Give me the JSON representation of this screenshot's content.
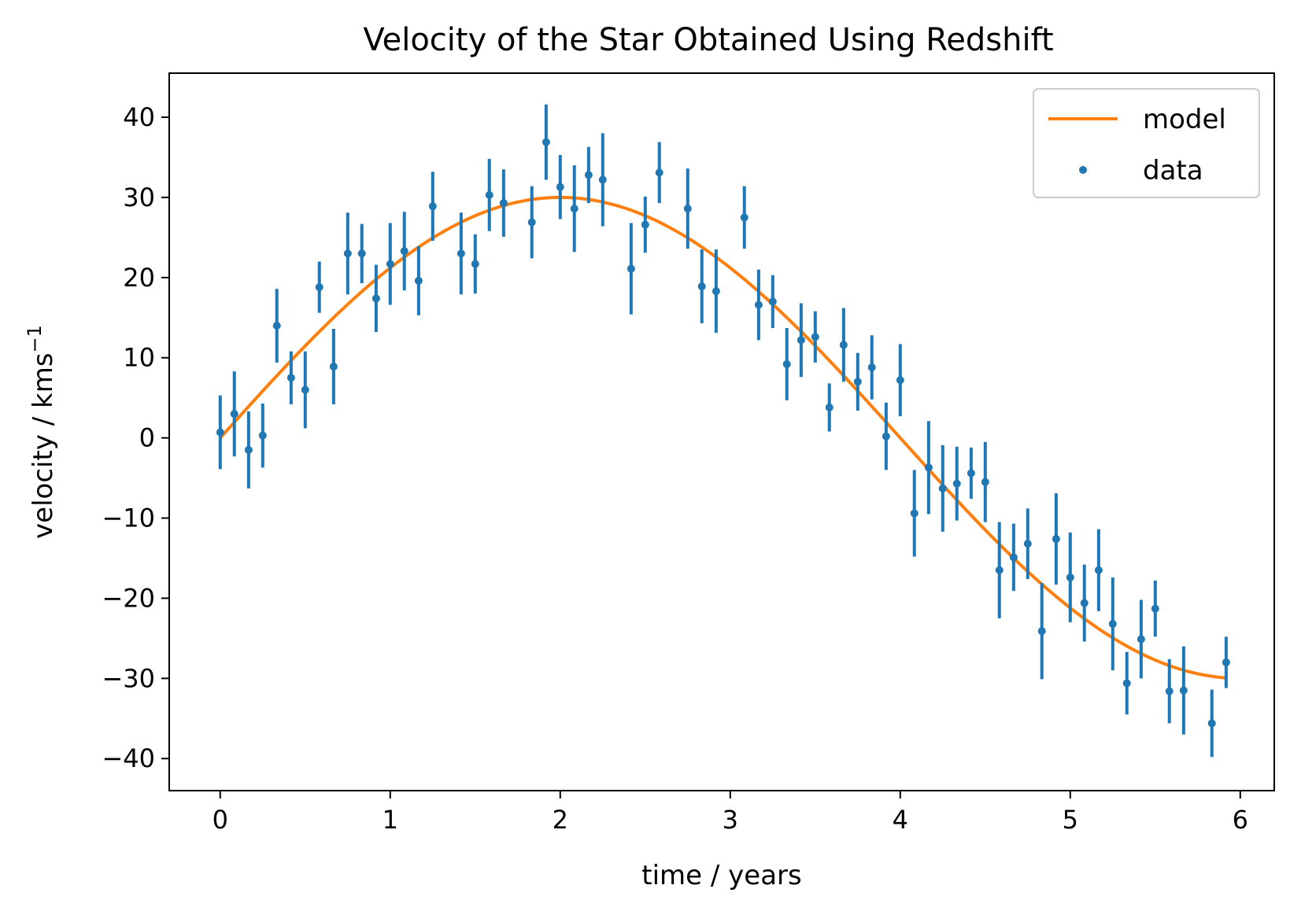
{
  "chart_data": {
    "type": "scatter",
    "title": "Velocity of the Star Obtained Using Redshift",
    "xlabel": "time / years",
    "ylabel": "velocity / kms",
    "ylabel_sup": "−1",
    "xlim": [
      -0.3,
      6.2
    ],
    "ylim": [
      -44,
      45.5
    ],
    "xticks": [
      0,
      1,
      2,
      3,
      4,
      5,
      6
    ],
    "xtick_labels": [
      "0",
      "1",
      "2",
      "3",
      "4",
      "5",
      "6"
    ],
    "yticks": [
      -40,
      -30,
      -20,
      -10,
      0,
      10,
      20,
      30,
      40
    ],
    "ytick_labels": [
      "−40",
      "−30",
      "−20",
      "−10",
      "0",
      "10",
      "20",
      "30",
      "40"
    ],
    "grid": false,
    "legend": {
      "placement": "top-right",
      "entries": [
        "model",
        "data"
      ]
    },
    "colors": {
      "model": "#ff7f0e",
      "data": "#1f77b4"
    },
    "series": [
      {
        "name": "model",
        "kind": "line",
        "function": "30*sin(2*pi*t/8)",
        "x_range": [
          0,
          5.92
        ]
      },
      {
        "name": "data",
        "kind": "errorbar",
        "x": [
          0,
          0.083,
          0.167,
          0.25,
          0.333,
          0.417,
          0.5,
          0.583,
          0.667,
          0.75,
          0.833,
          0.917,
          1.0,
          1.083,
          1.167,
          1.25,
          1.417,
          1.5,
          1.583,
          1.667,
          1.833,
          1.917,
          2.0,
          2.083,
          2.167,
          2.25,
          2.417,
          2.5,
          2.583,
          2.75,
          2.833,
          2.917,
          3.083,
          3.167,
          3.25,
          3.333,
          3.417,
          3.5,
          3.583,
          3.667,
          3.75,
          3.833,
          3.917,
          4.0,
          4.083,
          4.167,
          4.25,
          4.333,
          4.417,
          4.5,
          4.583,
          4.667,
          4.75,
          4.833,
          4.917,
          5.0,
          5.083,
          5.167,
          5.25,
          5.333,
          5.417,
          5.5,
          5.583,
          5.667,
          5.833,
          5.917
        ],
        "y": [
          0.7,
          3.0,
          -1.5,
          0.3,
          14.0,
          7.5,
          6.0,
          18.8,
          8.9,
          23.0,
          23.0,
          17.4,
          21.7,
          23.3,
          19.6,
          28.9,
          23.0,
          21.7,
          30.3,
          29.3,
          26.9,
          36.9,
          31.3,
          28.6,
          32.8,
          32.2,
          21.1,
          26.6,
          33.1,
          28.6,
          18.9,
          18.3,
          27.5,
          16.6,
          17.0,
          9.2,
          12.2,
          12.6,
          3.8,
          11.6,
          7.0,
          8.8,
          0.2,
          7.2,
          -9.4,
          -3.7,
          -6.3,
          -5.7,
          -4.4,
          -5.5,
          -16.5,
          -14.9,
          -13.2,
          -24.1,
          -12.6,
          -17.4,
          -20.6,
          -16.5,
          -23.2,
          -30.6,
          -25.1,
          -21.3,
          -31.6,
          -31.5,
          -35.6,
          -28.0
        ],
        "err": [
          4.6,
          5.3,
          4.8,
          4.0,
          4.6,
          3.3,
          4.8,
          3.2,
          4.7,
          5.1,
          3.7,
          4.2,
          5.1,
          4.9,
          4.3,
          4.3,
          5.1,
          3.7,
          4.5,
          4.2,
          4.5,
          4.7,
          4.0,
          5.4,
          3.5,
          5.8,
          5.7,
          3.5,
          3.8,
          5.0,
          4.6,
          5.2,
          3.9,
          4.4,
          3.3,
          4.5,
          4.6,
          3.2,
          3.0,
          4.6,
          3.6,
          4.0,
          4.2,
          4.5,
          5.4,
          5.8,
          5.4,
          4.6,
          3.2,
          5.0,
          6.0,
          4.2,
          4.4,
          6.0,
          5.7,
          5.6,
          4.8,
          5.1,
          5.8,
          3.9,
          4.9,
          3.5,
          4.0,
          5.5,
          4.2,
          3.2
        ]
      }
    ]
  }
}
